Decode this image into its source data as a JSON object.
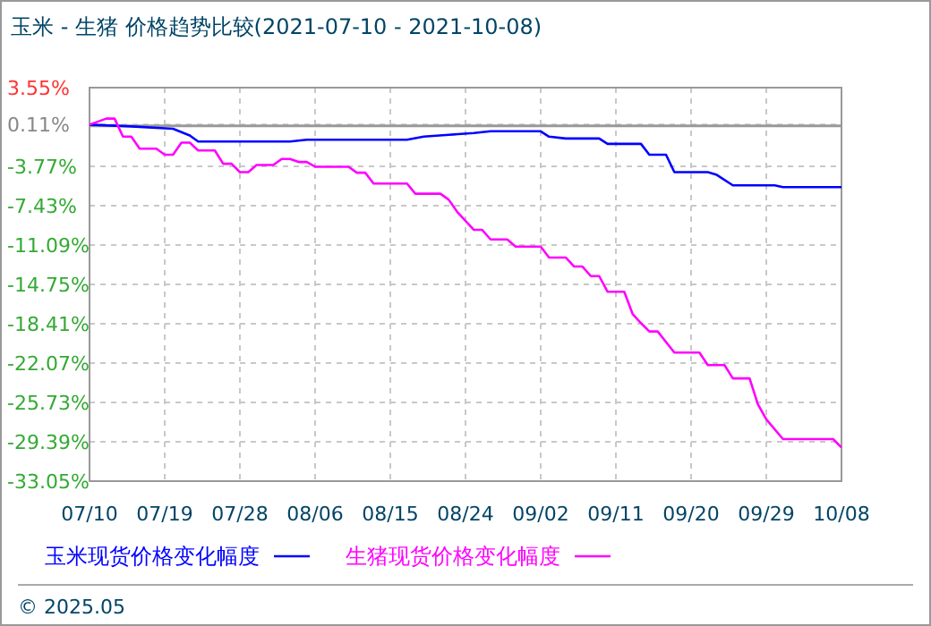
{
  "chart_data": {
    "type": "line",
    "title": "玉米 - 生猪  价格趋势比较(2021-07-10 - 2021-10-08)",
    "xlim": [
      "2021-07-10",
      "2021-10-08"
    ],
    "xticks": [
      {
        "value": "2021-07-10",
        "label": "07/10"
      },
      {
        "value": "2021-07-19",
        "label": "07/19"
      },
      {
        "value": "2021-07-28",
        "label": "07/28"
      },
      {
        "value": "2021-08-06",
        "label": "08/06"
      },
      {
        "value": "2021-08-15",
        "label": "08/15"
      },
      {
        "value": "2021-08-24",
        "label": "08/24"
      },
      {
        "value": "2021-09-02",
        "label": "09/02"
      },
      {
        "value": "2021-09-11",
        "label": "09/11"
      },
      {
        "value": "2021-09-20",
        "label": "09/20"
      },
      {
        "value": "2021-09-29",
        "label": "09/29"
      },
      {
        "value": "2021-10-08",
        "label": "10/08"
      }
    ],
    "ylim": [
      -33.05,
      3.55
    ],
    "yticks": [
      {
        "value": 3.55,
        "label": "3.55%"
      },
      {
        "value": 0.11,
        "label": "0.11%"
      },
      {
        "value": -3.77,
        "label": "-3.77%"
      },
      {
        "value": -7.43,
        "label": "-7.43%"
      },
      {
        "value": -11.09,
        "label": "-11.09%"
      },
      {
        "value": -14.75,
        "label": "-14.75%"
      },
      {
        "value": -18.41,
        "label": "-18.41%"
      },
      {
        "value": -22.07,
        "label": "-22.07%"
      },
      {
        "value": -25.73,
        "label": "-25.73%"
      },
      {
        "value": -29.39,
        "label": "-29.39%"
      },
      {
        "value": -33.05,
        "label": "-33.05%"
      }
    ],
    "grid": true,
    "legend": "bottom",
    "line_style": "solid",
    "marker": "none",
    "ref_lines": [
      {
        "axis": "y",
        "value": 0,
        "color": "#999999",
        "line_style": "solid"
      }
    ],
    "annotations": [
      "© 2025.05"
    ],
    "series": [
      {
        "name": "玉米现货价格变化幅度",
        "color": "#0000ff",
        "x": [
          "2021-07-10",
          "2021-07-15",
          "2021-07-20",
          "2021-07-22",
          "2021-07-23",
          "2021-08-03",
          "2021-08-05",
          "2021-08-17",
          "2021-08-19",
          "2021-08-22",
          "2021-08-25",
          "2021-08-27",
          "2021-09-02",
          "2021-09-03",
          "2021-09-05",
          "2021-09-09",
          "2021-09-10",
          "2021-09-14",
          "2021-09-15",
          "2021-09-17",
          "2021-09-18",
          "2021-09-22",
          "2021-09-23",
          "2021-09-25",
          "2021-09-30",
          "2021-10-01",
          "2021-10-08"
        ],
        "values": [
          0.11,
          -0.06,
          -0.28,
          -0.9,
          -1.46,
          -1.46,
          -1.29,
          -1.29,
          -1.01,
          -0.84,
          -0.67,
          -0.51,
          -0.51,
          -1.01,
          -1.18,
          -1.18,
          -1.68,
          -1.68,
          -2.69,
          -2.69,
          -4.31,
          -4.31,
          -4.53,
          -5.54,
          -5.54,
          -5.71,
          -5.71
        ]
      },
      {
        "name": "生猪现货价格变化幅度",
        "color": "#ff00ff",
        "x": [
          "2021-07-10",
          "2021-07-12",
          "2021-07-13",
          "2021-07-14",
          "2021-07-15",
          "2021-07-16",
          "2021-07-18",
          "2021-07-19",
          "2021-07-20",
          "2021-07-21",
          "2021-07-22",
          "2021-07-23",
          "2021-07-25",
          "2021-07-26",
          "2021-07-27",
          "2021-07-28",
          "2021-07-29",
          "2021-07-30",
          "2021-08-01",
          "2021-08-02",
          "2021-08-03",
          "2021-08-04",
          "2021-08-05",
          "2021-08-06",
          "2021-08-10",
          "2021-08-11",
          "2021-08-12",
          "2021-08-13",
          "2021-08-17",
          "2021-08-18",
          "2021-08-21",
          "2021-08-22",
          "2021-08-23",
          "2021-08-25",
          "2021-08-26",
          "2021-08-27",
          "2021-08-29",
          "2021-08-30",
          "2021-09-02",
          "2021-09-03",
          "2021-09-05",
          "2021-09-06",
          "2021-09-07",
          "2021-09-08",
          "2021-09-09",
          "2021-09-10",
          "2021-09-12",
          "2021-09-13",
          "2021-09-14",
          "2021-09-15",
          "2021-09-16",
          "2021-09-18",
          "2021-09-21",
          "2021-09-22",
          "2021-09-24",
          "2021-09-25",
          "2021-09-27",
          "2021-09-28",
          "2021-09-29",
          "2021-10-01",
          "2021-10-07",
          "2021-10-08"
        ],
        "values": [
          0.11,
          0.67,
          0.67,
          -1.01,
          -1.01,
          -2.13,
          -2.13,
          -2.69,
          -2.69,
          -1.57,
          -1.57,
          -2.29,
          -2.29,
          -3.53,
          -3.53,
          -4.31,
          -4.31,
          -3.64,
          -3.64,
          -3.08,
          -3.08,
          -3.36,
          -3.36,
          -3.81,
          -3.81,
          -4.36,
          -4.36,
          -5.37,
          -5.37,
          -6.32,
          -6.32,
          -6.88,
          -8.0,
          -9.68,
          -9.68,
          -10.57,
          -10.57,
          -11.24,
          -11.24,
          -12.25,
          -12.25,
          -13.09,
          -13.09,
          -13.98,
          -13.98,
          -15.43,
          -15.43,
          -17.5,
          -18.35,
          -19.13,
          -19.13,
          -21.09,
          -21.09,
          -22.26,
          -22.26,
          -23.49,
          -23.49,
          -25.9,
          -27.3,
          -29.14,
          -29.14,
          -29.92
        ]
      }
    ]
  }
}
